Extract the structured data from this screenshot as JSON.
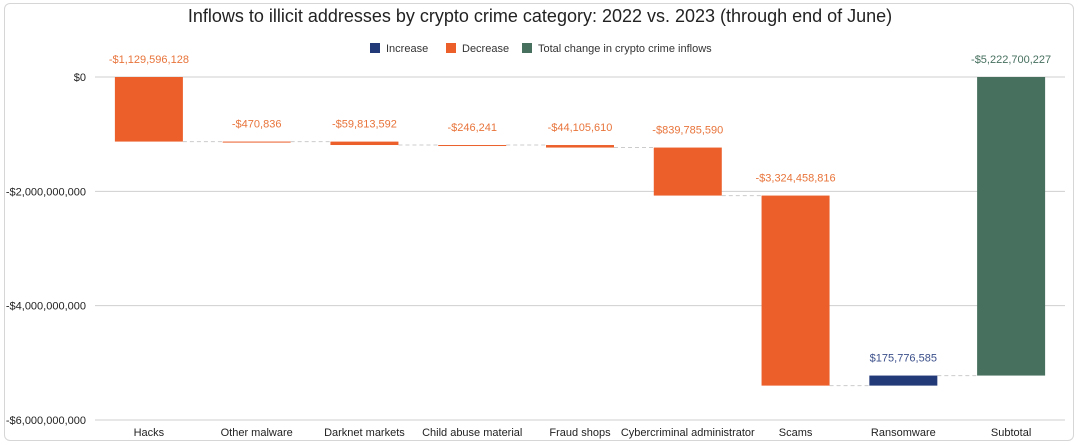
{
  "chart_data": {
    "type": "bar",
    "subtype": "waterfall",
    "title": "Inflows to illicit addresses by crypto crime category: 2022 vs. 2023 (through end of June)",
    "legend": {
      "placement": "top-center",
      "entries": [
        {
          "label": "Increase",
          "color": "#233a78"
        },
        {
          "label": "Decrease",
          "color": "#ec5f2a"
        },
        {
          "label": "Total change in crypto crime inflows",
          "color": "#47705f"
        }
      ]
    },
    "ylim": [
      -6000000000,
      0
    ],
    "yticks": [
      0,
      -2000000000,
      -4000000000,
      -6000000000
    ],
    "ytick_labels": [
      "$0",
      "-$2,000,000,000",
      "-$4,000,000,000",
      "-$6,000,000,000"
    ],
    "grid": true,
    "categories": [
      "Hacks",
      "Other malware",
      "Darknet markets",
      "Child abuse material",
      "Fraud shops",
      "Cybercriminal administrator",
      "Scams",
      "Ransomware",
      "Subtotal"
    ],
    "values": [
      -1129596128,
      -470836,
      -59813592,
      -246241,
      -44105610,
      -839785590,
      -3324458816,
      175776585,
      -5222700227
    ],
    "kinds": [
      "decrease",
      "decrease",
      "decrease",
      "decrease",
      "decrease",
      "decrease",
      "decrease",
      "increase",
      "total"
    ],
    "data_labels": [
      "-$1,129,596,128",
      "-$470,836",
      "-$59,813,592",
      "-$246,241",
      "-$44,105,610",
      "-$839,785,590",
      "-$3,324,458,816",
      "$175,776,585",
      "-$5,222,700,227"
    ],
    "colors": {
      "increase": "#233a78",
      "decrease": "#ec5f2a",
      "total": "#47705f",
      "label_decrease": "#e8743b",
      "label_increase": "#3b4f8a",
      "label_total": "#47705f"
    }
  }
}
